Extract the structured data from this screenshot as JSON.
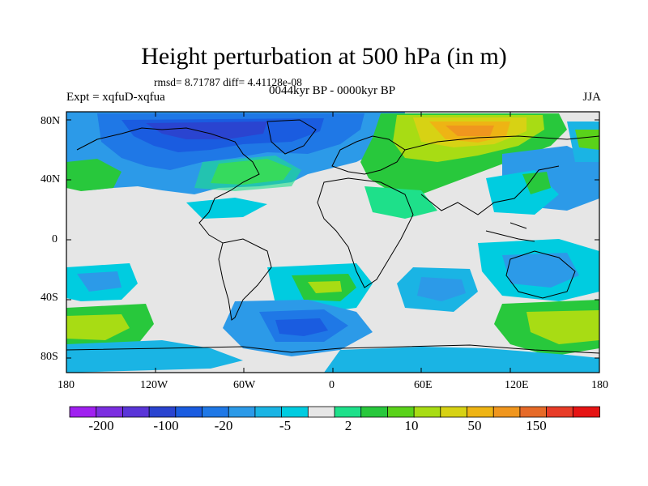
{
  "title": "Height perturbation at 500 hPa (in m)",
  "stats_text": "rmsd= 8.71787 diff= 4.41128e-08",
  "period_label": "0044kyr BP - 0000kyr BP",
  "expt_label": "Expt = xqfuD-xqfua",
  "season_label": "JJA",
  "lat_ticks": [
    "80N",
    "40N",
    "0",
    "40S",
    "80S"
  ],
  "lon_ticks": [
    "180",
    "120W",
    "60W",
    "0",
    "60E",
    "120E",
    "180"
  ],
  "colorbar": {
    "colors": [
      "#a020f0",
      "#7b2ee0",
      "#5a35d8",
      "#2a44d0",
      "#1a5ce0",
      "#1f78e6",
      "#2c9ae8",
      "#1ab4e4",
      "#00cce0",
      "#e6e6e6",
      "#1ee08a",
      "#28c83c",
      "#5ad21a",
      "#a8dc14",
      "#d7d214",
      "#eeb414",
      "#f0961e",
      "#e66a28",
      "#e83c28",
      "#e61414"
    ],
    "labels": [
      "-200",
      "-100",
      "-20",
      "-5",
      "2",
      "10",
      "50",
      "150"
    ]
  },
  "colors": {
    "neutral": "#e6e6e6",
    "coast": "#000000"
  }
}
